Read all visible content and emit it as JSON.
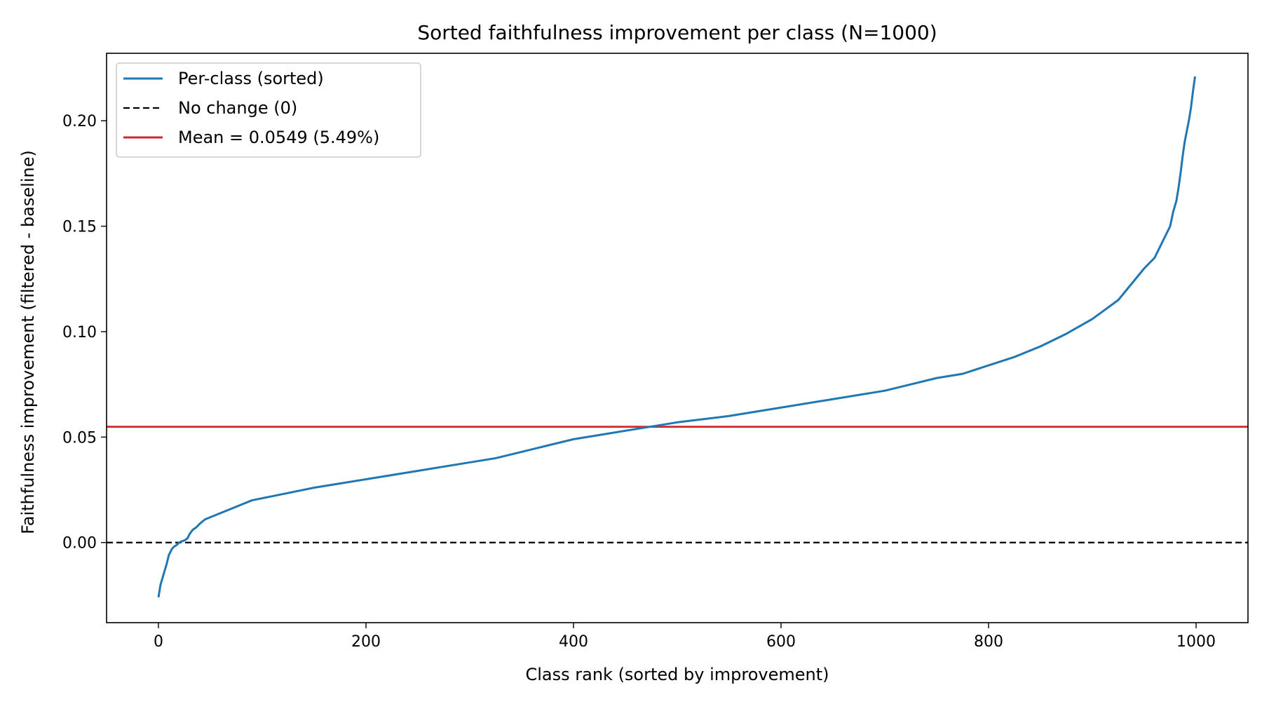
{
  "chart_data": {
    "type": "line",
    "title": "Sorted faithfulness improvement per class (N=1000)",
    "xlabel": "Class rank (sorted by improvement)",
    "ylabel": "Faithfulness improvement (filtered - baseline)",
    "xlim": [
      -50,
      1050
    ],
    "ylim": [
      -0.038,
      0.232
    ],
    "xticks": [
      0,
      200,
      400,
      600,
      800,
      1000
    ],
    "yticks": [
      0.0,
      0.05,
      0.1,
      0.15,
      0.2
    ],
    "xtick_labels": [
      "0",
      "200",
      "400",
      "600",
      "800",
      "1000"
    ],
    "ytick_labels": [
      "0.00",
      "0.05",
      "0.10",
      "0.15",
      "0.20"
    ],
    "grid": false,
    "legend_position": "upper-left",
    "series": [
      {
        "name": "Per-class (sorted)",
        "style": "solid",
        "color": "#1f77b4",
        "x": [
          0,
          2,
          5,
          8,
          10,
          13,
          15,
          18,
          20,
          22,
          25,
          28,
          30,
          33,
          36,
          40,
          45,
          50,
          55,
          60,
          70,
          80,
          90,
          100,
          110,
          120,
          130,
          150,
          175,
          200,
          225,
          250,
          275,
          300,
          325,
          350,
          375,
          400,
          425,
          450,
          475,
          500,
          550,
          600,
          650,
          700,
          725,
          750,
          775,
          800,
          825,
          850,
          875,
          900,
          925,
          950,
          960,
          970,
          975,
          978,
          981,
          983,
          985,
          987,
          989,
          991,
          993,
          995,
          997,
          999
        ],
        "values": [
          -0.026,
          -0.02,
          -0.015,
          -0.01,
          -0.006,
          -0.003,
          -0.002,
          -0.001,
          0.0,
          0.0005,
          0.001,
          0.002,
          0.004,
          0.006,
          0.007,
          0.009,
          0.011,
          0.012,
          0.013,
          0.014,
          0.016,
          0.018,
          0.02,
          0.021,
          0.022,
          0.023,
          0.024,
          0.026,
          0.028,
          0.03,
          0.032,
          0.034,
          0.036,
          0.038,
          0.04,
          0.043,
          0.046,
          0.049,
          0.051,
          0.053,
          0.055,
          0.057,
          0.06,
          0.064,
          0.068,
          0.072,
          0.075,
          0.078,
          0.08,
          0.084,
          0.088,
          0.093,
          0.099,
          0.106,
          0.115,
          0.13,
          0.135,
          0.145,
          0.15,
          0.157,
          0.162,
          0.168,
          0.175,
          0.183,
          0.19,
          0.195,
          0.2,
          0.206,
          0.214,
          0.221
        ]
      },
      {
        "name": "No change (0)",
        "style": "dashed",
        "color": "#000000",
        "value": 0.0
      },
      {
        "name": "Mean = 0.0549 (5.49%)",
        "style": "solid",
        "color": "#d62728",
        "value": 0.0549
      }
    ]
  }
}
